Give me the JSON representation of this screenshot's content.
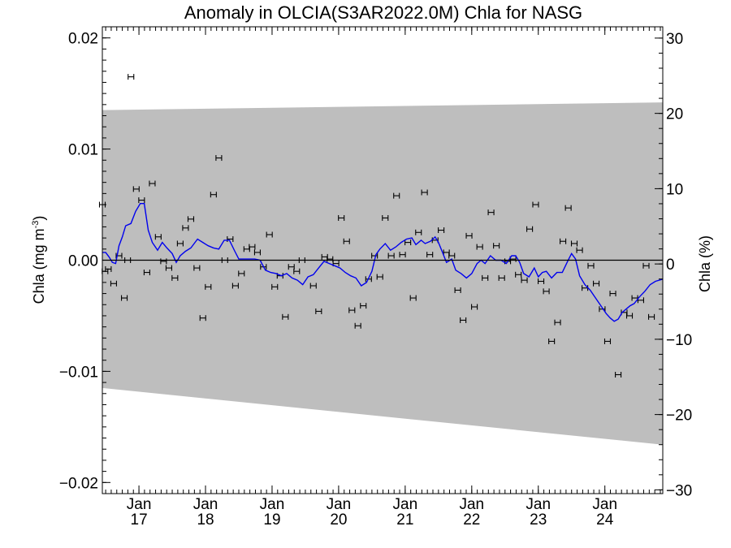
{
  "chart_data": {
    "type": "scatter",
    "title": "Anomaly in OLCIA(S3AR2022.0M) Chla for NASG",
    "ylabel_left": "Chla (mg m",
    "ylabel_left_sup": "-3",
    "ylabel_left_close": ")",
    "ylabel_right": "Chla (%)",
    "ylim_left": [
      -0.021,
      0.021
    ],
    "ylim_right": [
      -30.5,
      31.5
    ],
    "yticks_left": [
      {
        "v": 0.02,
        "label": "0.02"
      },
      {
        "v": 0.01,
        "label": "0.01"
      },
      {
        "v": 0.0,
        "label": "0.00"
      },
      {
        "v": -0.01,
        "label": "−0.01"
      },
      {
        "v": -0.02,
        "label": "−0.02"
      }
    ],
    "yticks_right": [
      {
        "v": 30,
        "label": "30"
      },
      {
        "v": 20,
        "label": "20"
      },
      {
        "v": 10,
        "label": "10"
      },
      {
        "v": 0,
        "label": "0"
      },
      {
        "v": -10,
        "label": "−10"
      },
      {
        "v": -20,
        "label": "−20"
      },
      {
        "v": -30,
        "label": "−30"
      }
    ],
    "xlim": [
      2016.45,
      2024.87
    ],
    "xticks": [
      {
        "v": 2017.0,
        "month": "Jan",
        "year": "17"
      },
      {
        "v": 2018.0,
        "month": "Jan",
        "year": "18"
      },
      {
        "v": 2019.0,
        "month": "Jan",
        "year": "19"
      },
      {
        "v": 2020.0,
        "month": "Jan",
        "year": "20"
      },
      {
        "v": 2021.0,
        "month": "Jan",
        "year": "21"
      },
      {
        "v": 2022.0,
        "month": "Jan",
        "year": "22"
      },
      {
        "v": 2023.0,
        "month": "Jan",
        "year": "23"
      },
      {
        "v": 2024.0,
        "month": "Jan",
        "year": "24"
      }
    ],
    "uncertainty_band": {
      "upper": [
        [
          2016.45,
          0.0135
        ],
        [
          2024.87,
          0.0142
        ]
      ],
      "lower": [
        [
          2016.45,
          -0.0115
        ],
        [
          2024.87,
          -0.0166
        ]
      ]
    },
    "points": [
      [
        2016.45,
        0.005
      ],
      [
        2016.49,
        -0.001
      ],
      [
        2016.54,
        -0.0008
      ],
      [
        2016.62,
        -0.0021
      ],
      [
        2016.7,
        0.0004
      ],
      [
        2016.78,
        -0.0034
      ],
      [
        2016.83,
        0.0
      ],
      [
        2016.88,
        0.0165
      ],
      [
        2016.96,
        0.0064
      ],
      [
        2017.04,
        0.0054
      ],
      [
        2017.12,
        -0.0011
      ],
      [
        2017.2,
        0.0069
      ],
      [
        2017.29,
        0.0021
      ],
      [
        2017.37,
        -0.0001
      ],
      [
        2017.45,
        -0.0007
      ],
      [
        2017.54,
        -0.0016
      ],
      [
        2017.62,
        0.0015
      ],
      [
        2017.7,
        0.0029
      ],
      [
        2017.78,
        0.0037
      ],
      [
        2017.87,
        -0.0007
      ],
      [
        2017.96,
        -0.0052
      ],
      [
        2018.04,
        -0.0024
      ],
      [
        2018.12,
        0.0059
      ],
      [
        2018.2,
        0.0092
      ],
      [
        2018.29,
        0.0
      ],
      [
        2018.37,
        0.0019
      ],
      [
        2018.45,
        -0.0023
      ],
      [
        2018.54,
        -0.0012
      ],
      [
        2018.62,
        0.001
      ],
      [
        2018.7,
        0.0012
      ],
      [
        2018.78,
        0.0007
      ],
      [
        2018.87,
        -0.0006
      ],
      [
        2018.96,
        0.0023
      ],
      [
        2019.04,
        -0.0024
      ],
      [
        2019.12,
        -0.0014
      ],
      [
        2019.2,
        -0.0051
      ],
      [
        2019.29,
        -0.0006
      ],
      [
        2019.37,
        -0.001
      ],
      [
        2019.45,
        0.0
      ],
      [
        2019.62,
        -0.0023
      ],
      [
        2019.7,
        -0.0046
      ],
      [
        2019.79,
        0.0003
      ],
      [
        2019.87,
        0.0001
      ],
      [
        2019.96,
        -0.0003
      ],
      [
        2020.04,
        0.0038
      ],
      [
        2020.12,
        0.0017
      ],
      [
        2020.2,
        -0.0045
      ],
      [
        2020.29,
        -0.0059
      ],
      [
        2020.37,
        -0.0041
      ],
      [
        2020.45,
        -0.0017
      ],
      [
        2020.54,
        0.0004
      ],
      [
        2020.62,
        -0.0015
      ],
      [
        2020.7,
        0.0038
      ],
      [
        2020.79,
        0.0004
      ],
      [
        2020.87,
        0.0058
      ],
      [
        2020.96,
        0.0005
      ],
      [
        2021.04,
        0.0016
      ],
      [
        2021.12,
        -0.0034
      ],
      [
        2021.2,
        0.0025
      ],
      [
        2021.29,
        0.0061
      ],
      [
        2021.37,
        0.0005
      ],
      [
        2021.45,
        0.0018
      ],
      [
        2021.54,
        0.0027
      ],
      [
        2021.62,
        0.0007
      ],
      [
        2021.7,
        0.0004
      ],
      [
        2021.79,
        -0.0027
      ],
      [
        2021.87,
        -0.0054
      ],
      [
        2021.96,
        0.0022
      ],
      [
        2022.04,
        -0.0042
      ],
      [
        2022.12,
        0.0012
      ],
      [
        2022.2,
        -0.0016
      ],
      [
        2022.29,
        0.0043
      ],
      [
        2022.37,
        0.0013
      ],
      [
        2022.45,
        -0.0016
      ],
      [
        2022.54,
        -0.0001
      ],
      [
        2022.62,
        0.0001
      ],
      [
        2022.7,
        -0.0013
      ],
      [
        2022.79,
        -0.0018
      ],
      [
        2022.87,
        0.0028
      ],
      [
        2022.96,
        0.005
      ],
      [
        2023.04,
        -0.0019
      ],
      [
        2023.12,
        -0.0028
      ],
      [
        2023.2,
        -0.0073
      ],
      [
        2023.29,
        -0.0056
      ],
      [
        2023.37,
        0.0017
      ],
      [
        2023.45,
        0.0047
      ],
      [
        2023.54,
        0.0015
      ],
      [
        2023.62,
        0.0009
      ],
      [
        2023.7,
        -0.0025
      ],
      [
        2023.79,
        -0.0005
      ],
      [
        2023.87,
        -0.0021
      ],
      [
        2023.96,
        -0.0044
      ],
      [
        2024.04,
        -0.0073
      ],
      [
        2024.12,
        -0.003
      ],
      [
        2024.2,
        -0.0103
      ],
      [
        2024.29,
        -0.0047
      ],
      [
        2024.37,
        -0.005
      ],
      [
        2024.45,
        -0.0034
      ],
      [
        2024.54,
        -0.0036
      ],
      [
        2024.62,
        -0.0005
      ],
      [
        2024.7,
        -0.0051
      ]
    ],
    "trend": [
      [
        2016.45,
        0.0007
      ],
      [
        2016.5,
        0.0007
      ],
      [
        2016.55,
        0.0003
      ],
      [
        2016.6,
        -0.0002
      ],
      [
        2016.65,
        -0.0003
      ],
      [
        2016.7,
        0.0013
      ],
      [
        2016.75,
        0.0021
      ],
      [
        2016.8,
        0.0031
      ],
      [
        2016.88,
        0.0033
      ],
      [
        2016.95,
        0.0044
      ],
      [
        2017.02,
        0.0051
      ],
      [
        2017.08,
        0.0051
      ],
      [
        2017.14,
        0.0027
      ],
      [
        2017.2,
        0.0016
      ],
      [
        2017.28,
        0.0009
      ],
      [
        2017.35,
        0.0016
      ],
      [
        2017.42,
        0.0011
      ],
      [
        2017.5,
        0.0006
      ],
      [
        2017.56,
        -0.0002
      ],
      [
        2017.62,
        0.0004
      ],
      [
        2017.7,
        0.0008
      ],
      [
        2017.78,
        0.0011
      ],
      [
        2017.88,
        0.0019
      ],
      [
        2017.96,
        0.0016
      ],
      [
        2018.04,
        0.0013
      ],
      [
        2018.12,
        0.0011
      ],
      [
        2018.2,
        0.001
      ],
      [
        2018.28,
        0.0018
      ],
      [
        2018.36,
        0.0018
      ],
      [
        2018.44,
        0.0008
      ],
      [
        2018.5,
        0.0001
      ],
      [
        2018.58,
        0.0001
      ],
      [
        2018.66,
        0.0001
      ],
      [
        2018.74,
        0.0001
      ],
      [
        2018.82,
        0.0
      ],
      [
        2018.9,
        -0.0009
      ],
      [
        2018.98,
        -0.0011
      ],
      [
        2019.06,
        -0.0012
      ],
      [
        2019.14,
        -0.0014
      ],
      [
        2019.22,
        -0.0012
      ],
      [
        2019.3,
        -0.0016
      ],
      [
        2019.38,
        -0.0018
      ],
      [
        2019.46,
        -0.0022
      ],
      [
        2019.54,
        -0.0015
      ],
      [
        2019.62,
        -0.0013
      ],
      [
        2019.7,
        -0.0007
      ],
      [
        2019.78,
        -0.0001
      ],
      [
        2019.86,
        -0.0003
      ],
      [
        2019.94,
        -0.0005
      ],
      [
        2020.02,
        -0.0007
      ],
      [
        2020.1,
        -0.0011
      ],
      [
        2020.18,
        -0.0014
      ],
      [
        2020.26,
        -0.0016
      ],
      [
        2020.34,
        -0.0023
      ],
      [
        2020.42,
        -0.002
      ],
      [
        2020.5,
        -0.001
      ],
      [
        2020.56,
        0.0005
      ],
      [
        2020.62,
        0.001
      ],
      [
        2020.7,
        0.0015
      ],
      [
        2020.78,
        0.0009
      ],
      [
        2020.86,
        0.0012
      ],
      [
        2020.94,
        0.0016
      ],
      [
        2021.02,
        0.0019
      ],
      [
        2021.1,
        0.002
      ],
      [
        2021.16,
        0.0014
      ],
      [
        2021.24,
        0.0018
      ],
      [
        2021.3,
        0.0015
      ],
      [
        2021.38,
        0.0017
      ],
      [
        2021.45,
        0.0021
      ],
      [
        2021.5,
        0.0016
      ],
      [
        2021.56,
        0.0007
      ],
      [
        2021.62,
        -0.0002
      ],
      [
        2021.7,
        0.0001
      ],
      [
        2021.76,
        -0.0009
      ],
      [
        2021.84,
        -0.0012
      ],
      [
        2021.92,
        -0.0016
      ],
      [
        2022.0,
        -0.0012
      ],
      [
        2022.08,
        -0.0003
      ],
      [
        2022.14,
        0.0
      ],
      [
        2022.2,
        -0.0003
      ],
      [
        2022.28,
        0.0004
      ],
      [
        2022.36,
        0.0
      ],
      [
        2022.44,
        0.0
      ],
      [
        2022.52,
        -0.0003
      ],
      [
        2022.6,
        0.0004
      ],
      [
        2022.66,
        0.0004
      ],
      [
        2022.72,
        -0.0002
      ],
      [
        2022.78,
        -0.0012
      ],
      [
        2022.86,
        -0.0015
      ],
      [
        2022.94,
        -0.0007
      ],
      [
        2023.0,
        -0.0015
      ],
      [
        2023.06,
        -0.0011
      ],
      [
        2023.12,
        -0.001
      ],
      [
        2023.2,
        -0.0016
      ],
      [
        2023.28,
        -0.0011
      ],
      [
        2023.36,
        -0.0011
      ],
      [
        2023.44,
        -0.0001
      ],
      [
        2023.5,
        0.0006
      ],
      [
        2023.56,
        0.0001
      ],
      [
        2023.62,
        -0.0014
      ],
      [
        2023.7,
        -0.0022
      ],
      [
        2023.78,
        -0.0027
      ],
      [
        2023.86,
        -0.0034
      ],
      [
        2023.94,
        -0.0041
      ],
      [
        2024.02,
        -0.0048
      ],
      [
        2024.08,
        -0.0052
      ],
      [
        2024.14,
        -0.0055
      ],
      [
        2024.2,
        -0.0053
      ],
      [
        2024.26,
        -0.0047
      ],
      [
        2024.32,
        -0.0044
      ],
      [
        2024.38,
        -0.0041
      ],
      [
        2024.44,
        -0.0039
      ],
      [
        2024.52,
        -0.0033
      ],
      [
        2024.6,
        -0.0028
      ],
      [
        2024.68,
        -0.0022
      ],
      [
        2024.76,
        -0.0019
      ],
      [
        2024.87,
        -0.0017
      ]
    ],
    "colors": {
      "band": "#bebebe",
      "trend": "#0000ee",
      "points": "#000000",
      "axes": "#000000"
    },
    "grid": false
  }
}
